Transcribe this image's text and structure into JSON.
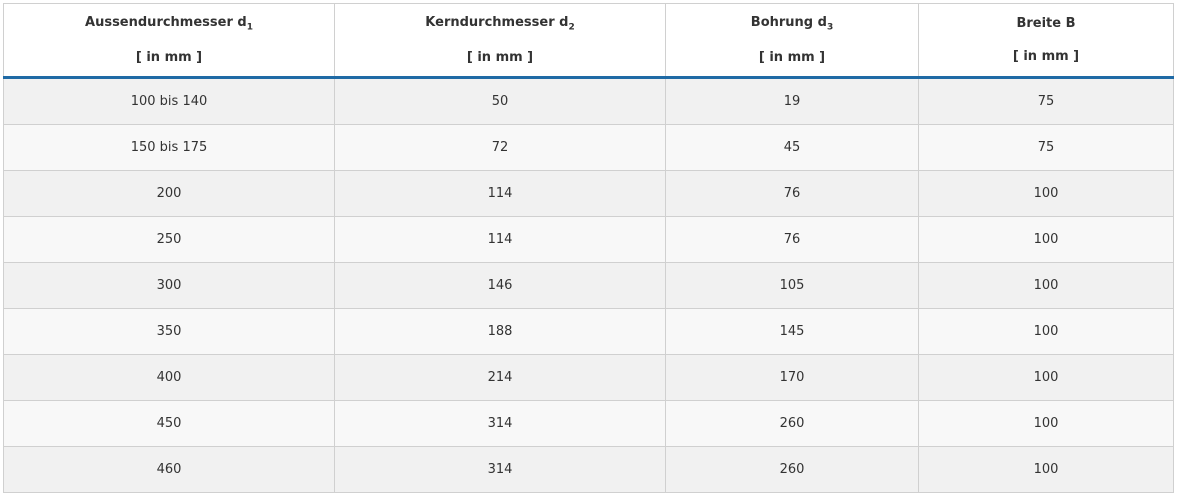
{
  "table": {
    "header": [
      {
        "label": "Aussendurchmesser d",
        "sub": "1",
        "unit": "[ in mm ]"
      },
      {
        "label": "Kerndurchmesser d",
        "sub": "2",
        "unit": "[ in mm ]"
      },
      {
        "label": "Bohrung d",
        "sub": "3",
        "unit": "[ in mm ]"
      },
      {
        "label": "Breite B",
        "unit": "[ in mm ]"
      }
    ],
    "rows": [
      [
        "100 bis 140",
        50,
        19,
        75
      ],
      [
        "150 bis 175",
        72,
        45,
        75
      ],
      [
        200,
        114,
        76,
        100
      ],
      [
        250,
        114,
        76,
        100
      ],
      [
        300,
        146,
        105,
        100
      ],
      [
        350,
        188,
        145,
        100
      ],
      [
        400,
        214,
        170,
        100
      ],
      [
        450,
        314,
        260,
        100
      ],
      [
        460,
        314,
        260,
        100
      ]
    ]
  }
}
